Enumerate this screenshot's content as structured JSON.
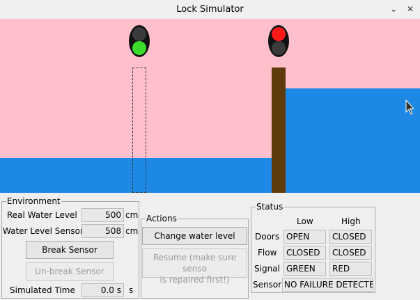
{
  "window": {
    "title": "Lock Simulator",
    "minimize_glyph": "⌄",
    "close_glyph": "✕"
  },
  "scene": {
    "sky_color": "#ffc0cb",
    "water_color": "#1e88e5",
    "gate_color": "#5f3a0c",
    "left_light": {
      "top": "off",
      "bottom": "green"
    },
    "right_light": {
      "top": "red",
      "bottom": "off"
    },
    "colors": {
      "green": "#3ddc2c",
      "red": "#ff1a1a",
      "off": "#3a3a3a"
    }
  },
  "environment": {
    "title": "Environment",
    "real_water_level_label": "Real Water Level",
    "real_water_level_value": "500",
    "real_water_level_unit": "cm",
    "water_level_sensor_label": "Water Level Sensor",
    "water_level_sensor_value": "508",
    "water_level_sensor_unit": "cm",
    "break_sensor_button": "Break Sensor",
    "unbreak_sensor_button": "Un-break Sensor",
    "simulated_time_label": "Simulated Time",
    "simulated_time_value": "0.0 s",
    "simulated_time_unit": "s"
  },
  "actions": {
    "title": "Actions",
    "change_water_level_button": "Change water level",
    "resume_button_line1": "Resume (make sure senso",
    "resume_button_line2": "is repaired first!)"
  },
  "status": {
    "title": "Status",
    "col_low": "Low",
    "col_high": "High",
    "doors_label": "Doors",
    "doors_low": "OPEN",
    "doors_high": "CLOSED",
    "flow_label": "Flow",
    "flow_low": "CLOSED",
    "flow_high": "CLOSED",
    "signal_label": "Signal",
    "signal_low": "GREEN",
    "signal_high": "RED",
    "sensor_label": "Sensor",
    "sensor_value": "NO FAILURE DETECTEI"
  }
}
